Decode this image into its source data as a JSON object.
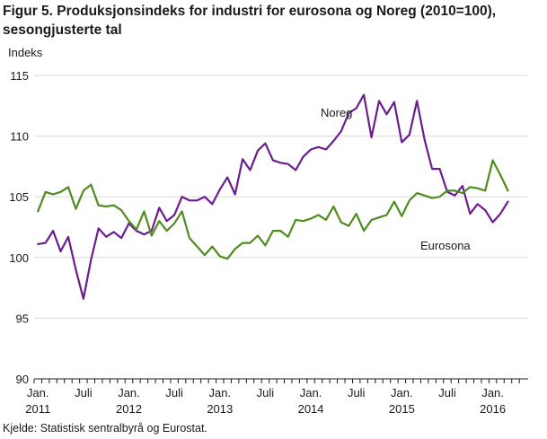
{
  "title_line1": "Figur 5. Produksjonsindeks for industri for eurosona og Noreg (2010=100),",
  "title_line2": "sesongjusterte tal",
  "source": "Kjelde: Statistisk sentralbyrå og Eurostat.",
  "chart_data": {
    "type": "line",
    "ylabel": "Indeks",
    "ylim": [
      90,
      115
    ],
    "yticks": [
      90,
      95,
      100,
      105,
      110,
      115
    ],
    "grid": "horizontal",
    "x_start": "2011-01",
    "x_end": "2016-04",
    "x_ticks": [
      {
        "month": "2011-01",
        "line1": "Jan.",
        "line2": "2011"
      },
      {
        "month": "2011-07",
        "line1": "Juli",
        "line2": ""
      },
      {
        "month": "2012-01",
        "line1": "Jan.",
        "line2": "2012"
      },
      {
        "month": "2012-07",
        "line1": "Juli",
        "line2": ""
      },
      {
        "month": "2013-01",
        "line1": "Jan.",
        "line2": "2013"
      },
      {
        "month": "2013-07",
        "line1": "Juli",
        "line2": ""
      },
      {
        "month": "2014-01",
        "line1": "Jan.",
        "line2": "2014"
      },
      {
        "month": "2014-07",
        "line1": "Juli",
        "line2": ""
      },
      {
        "month": "2015-01",
        "line1": "Jan.",
        "line2": "2015"
      },
      {
        "month": "2015-07",
        "line1": "Juli",
        "line2": ""
      },
      {
        "month": "2016-01",
        "line1": "Jan.",
        "line2": "2016"
      }
    ],
    "series": [
      {
        "name": "Noreg",
        "color": "#6b1d8f",
        "values": [
          101.1,
          101.2,
          102.2,
          100.5,
          101.7,
          99.0,
          96.6,
          99.8,
          102.4,
          101.7,
          102.1,
          101.6,
          102.8,
          102.2,
          101.9,
          102.2,
          104.1,
          103.0,
          103.5,
          105.0,
          104.7,
          104.7,
          105.0,
          104.4,
          105.6,
          106.6,
          105.2,
          108.1,
          107.2,
          108.8,
          109.4,
          108.0,
          107.8,
          107.7,
          107.2,
          108.3,
          108.9,
          109.1,
          108.9,
          109.6,
          110.4,
          111.9,
          112.3,
          113.4,
          109.9,
          112.9,
          111.8,
          112.8,
          109.5,
          110.1,
          112.9,
          109.7,
          107.3,
          107.3,
          105.4,
          105.1,
          105.9,
          103.6,
          104.4,
          103.9,
          102.9,
          103.6,
          104.6
        ]
      },
      {
        "name": "Eurosona",
        "color": "#4e8c1e",
        "values": [
          103.8,
          105.4,
          105.2,
          105.4,
          105.8,
          104.0,
          105.5,
          106.0,
          104.3,
          104.2,
          104.3,
          103.9,
          103.0,
          102.3,
          103.8,
          101.8,
          103.0,
          102.2,
          102.8,
          103.8,
          101.6,
          100.9,
          100.2,
          100.9,
          100.1,
          99.9,
          100.7,
          101.2,
          101.2,
          101.8,
          101.0,
          102.2,
          102.2,
          101.7,
          103.1,
          103.0,
          103.2,
          103.5,
          103.1,
          104.2,
          102.9,
          102.6,
          103.6,
          102.2,
          103.1,
          103.3,
          103.5,
          104.6,
          103.4,
          104.7,
          105.3,
          105.1,
          104.9,
          105.0,
          105.5,
          105.5,
          105.3,
          105.8,
          105.7,
          105.5,
          108.0,
          106.8,
          105.5
        ]
      }
    ],
    "annotations": [
      {
        "text": "Noreg",
        "series": "Noreg"
      },
      {
        "text": "Eurosona",
        "series": "Eurosona"
      }
    ]
  }
}
